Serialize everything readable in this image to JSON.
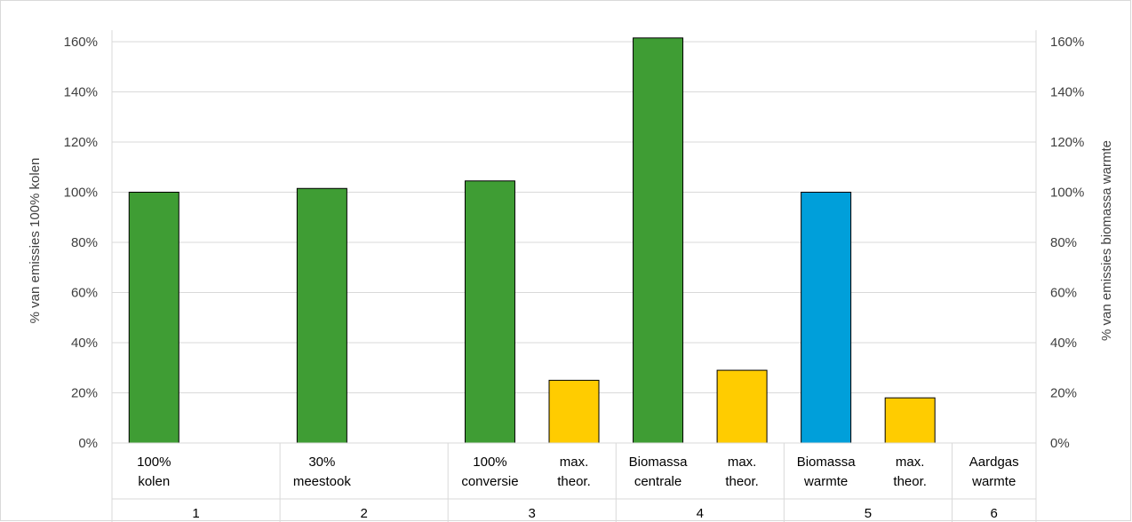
{
  "chart_data": {
    "type": "bar",
    "ylabel_left": "% van emissies 100% kolen",
    "ylabel_right": "% van emissies biomassa warmte",
    "ylim": [
      0,
      1.6
    ],
    "yticks": [
      "0%",
      "20%",
      "40%",
      "60%",
      "80%",
      "100%",
      "120%",
      "140%",
      "160%"
    ],
    "grid": true,
    "groups": [
      "1",
      "2",
      "3",
      "4",
      "5",
      "6"
    ],
    "categories": [
      {
        "label_top": "100%",
        "label_bottom": "kolen",
        "group": "1",
        "value": 1.0,
        "color": "#3f9d34",
        "axis": "left"
      },
      {
        "label_top": "",
        "label_bottom": "",
        "group": "1",
        "value": null,
        "color": "",
        "axis": "left"
      },
      {
        "label_top": "30%",
        "label_bottom": "meestook",
        "group": "2",
        "value": 1.015,
        "color": "#3f9d34",
        "axis": "left"
      },
      {
        "label_top": "",
        "label_bottom": "",
        "group": "2",
        "value": null,
        "color": "",
        "axis": "left"
      },
      {
        "label_top": "100%",
        "label_bottom": "conversie",
        "group": "3",
        "value": 1.045,
        "color": "#3f9d34",
        "axis": "left"
      },
      {
        "label_top": "max.",
        "label_bottom": "theor.",
        "group": "3",
        "value": 0.25,
        "color": "#ffcc00",
        "axis": "left"
      },
      {
        "label_top": "Biomassa",
        "label_bottom": "centrale",
        "group": "4",
        "value": 1.615,
        "color": "#3f9d34",
        "axis": "left"
      },
      {
        "label_top": "max.",
        "label_bottom": "theor.",
        "group": "4",
        "value": 0.29,
        "color": "#ffcc00",
        "axis": "left"
      },
      {
        "label_top": "Biomassa",
        "label_bottom": "warmte",
        "group": "5",
        "value": 1.0,
        "color": "#009fda",
        "axis": "right"
      },
      {
        "label_top": "max.",
        "label_bottom": "theor.",
        "group": "5",
        "value": 0.18,
        "color": "#ffcc00",
        "axis": "right"
      },
      {
        "label_top": "Aardgas",
        "label_bottom": "warmte",
        "group": "6",
        "value": null,
        "color": "",
        "axis": "right"
      }
    ]
  }
}
